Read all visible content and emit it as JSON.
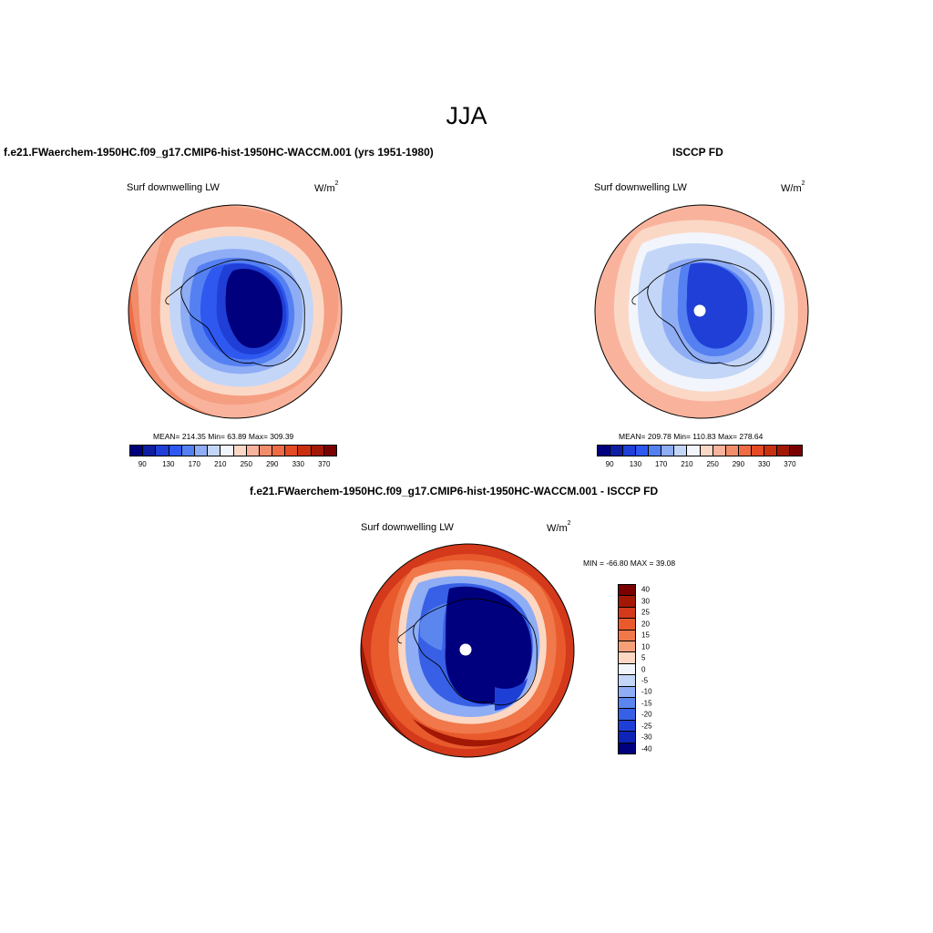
{
  "figure": {
    "season": "JJA",
    "panel1_title": "f.e21.FWaerchem-1950HC.f09_g17.CMIP6-hist-1950HC-WACCM.001 (yrs 1951-1980)",
    "panel2_title": "ISCCP FD",
    "panel3_title": "f.e21.FWaerchem-1950HC.f09_g17.CMIP6-hist-1950HC-WACCM.001 - ISCCP FD",
    "variable": "Surf downwelling LW",
    "units_base": "W/m",
    "units_exp": "2"
  },
  "panels": [
    {
      "stats": "MEAN= 214.35  Min=  63.89  Max= 309.39"
    },
    {
      "stats": "MEAN= 209.78  Min= 110.83  Max= 278.64"
    },
    {
      "stats": "MIN = -66.80 MAX =  39.08"
    }
  ],
  "colorbar_abs": {
    "colors": [
      "#00007f",
      "#0d1ea3",
      "#1f3fd6",
      "#2e58ef",
      "#5580f2",
      "#8eadf5",
      "#c4d6f7",
      "#f2f5fb",
      "#fbd8c6",
      "#f9b39c",
      "#f28d6c",
      "#ee6b46",
      "#e44a23",
      "#c9300f",
      "#a31805",
      "#7a0000"
    ],
    "labels": [
      "90",
      "130",
      "170",
      "210",
      "250",
      "290",
      "330",
      "370"
    ]
  },
  "colorbar_diff": {
    "colors": [
      "#7a0000",
      "#a31805",
      "#d3391a",
      "#e85a2c",
      "#f0784a",
      "#f6a07a",
      "#fcd7c3",
      "#f2f5fb",
      "#c4d6f7",
      "#8eadf5",
      "#5a86ee",
      "#3760e6",
      "#1e3fd6",
      "#0d24b6",
      "#00007f"
    ],
    "labels": [
      "40",
      "30",
      "25",
      "20",
      "15",
      "10",
      "5",
      "0",
      "-5",
      "-10",
      "-15",
      "-20",
      "-25",
      "-30",
      "-40"
    ]
  },
  "chart_data": {
    "type": "heatmap",
    "title": "JJA",
    "projection": "south polar stereographic",
    "maps": [
      {
        "name": "f.e21.FWaerchem-1950HC.f09_g17.CMIP6-hist-1950HC-WACCM.001 (yrs 1951-1980)",
        "variable": "Surf downwelling LW",
        "units": "W/m2",
        "mean": 214.35,
        "min": 63.89,
        "max": 309.39,
        "contour_levels": [
          90,
          110,
          130,
          150,
          170,
          190,
          210,
          230,
          250,
          270,
          290,
          310,
          330,
          350,
          370
        ]
      },
      {
        "name": "ISCCP FD",
        "variable": "Surf downwelling LW",
        "units": "W/m2",
        "mean": 209.78,
        "min": 110.83,
        "max": 278.64,
        "contour_levels": [
          90,
          110,
          130,
          150,
          170,
          190,
          210,
          230,
          250,
          270,
          290,
          310,
          330,
          350,
          370
        ]
      },
      {
        "name": "f.e21.FWaerchem-1950HC.f09_g17.CMIP6-hist-1950HC-WACCM.001 - ISCCP FD",
        "variable": "Surf downwelling LW",
        "units": "W/m2",
        "min": -66.8,
        "max": 39.08,
        "contour_levels": [
          -40,
          -30,
          -25,
          -20,
          -15,
          -10,
          -5,
          0,
          5,
          10,
          15,
          20,
          25,
          30,
          40
        ]
      }
    ]
  }
}
